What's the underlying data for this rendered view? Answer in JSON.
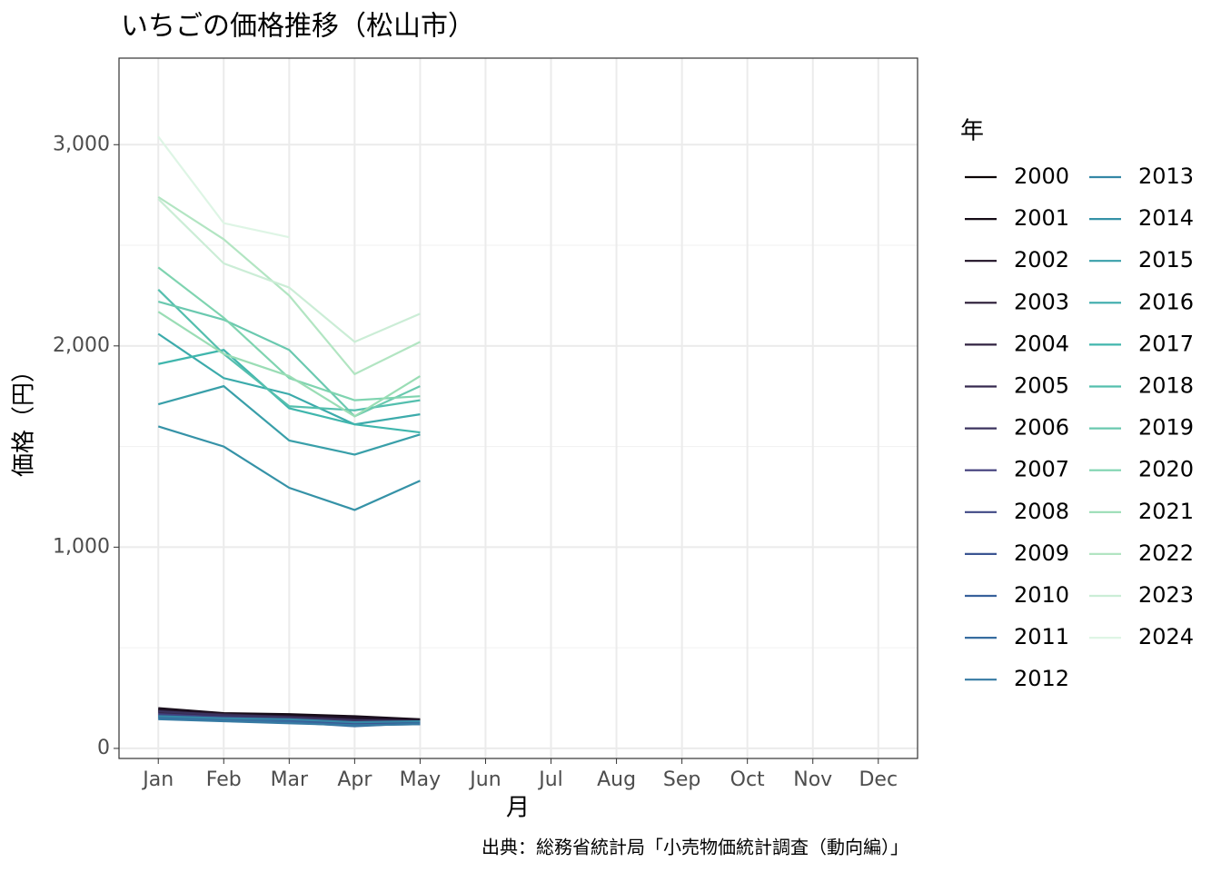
{
  "chart_data": {
    "type": "line",
    "title": "いちごの価格推移（松山市）",
    "x_label": "月",
    "y_label": "価格（円）",
    "caption": "出典：総務省統計局「小売物価統計調査（動向編）」",
    "legend_title": "年",
    "categories": [
      "Jan",
      "Feb",
      "Mar",
      "Apr",
      "May",
      "Jun",
      "Jul",
      "Aug",
      "Sep",
      "Oct",
      "Nov",
      "Dec"
    ],
    "ylim": [
      -50,
      3430
    ],
    "yticks": [
      0,
      {
        "value": 1000,
        "label": "1,000"
      },
      {
        "value": 2000,
        "label": "2,000"
      },
      {
        "value": 3000,
        "label": "3,000"
      }
    ],
    "grid": true,
    "legend": "right",
    "series": [
      {
        "name": "2000",
        "color": "#0B0405",
        "values": [
          190,
          170,
          165,
          150,
          140,
          null,
          null,
          null,
          null,
          null,
          null,
          null
        ]
      },
      {
        "name": "2001",
        "color": "#150B16",
        "values": [
          200,
          175,
          170,
          160,
          145,
          null,
          null,
          null,
          null,
          null,
          null,
          null
        ]
      },
      {
        "name": "2002",
        "color": "#1F1125",
        "values": [
          195,
          170,
          160,
          155,
          140,
          null,
          null,
          null,
          null,
          null,
          null,
          null
        ]
      },
      {
        "name": "2003",
        "color": "#291A35",
        "values": [
          185,
          165,
          160,
          145,
          135,
          null,
          null,
          null,
          null,
          null,
          null,
          null
        ]
      },
      {
        "name": "2004",
        "color": "#312240",
        "values": [
          180,
          170,
          155,
          140,
          130,
          null,
          null,
          null,
          null,
          null,
          null,
          null
        ]
      },
      {
        "name": "2005",
        "color": "#36294F",
        "values": [
          175,
          160,
          150,
          135,
          130,
          null,
          null,
          null,
          null,
          null,
          null,
          null
        ]
      },
      {
        "name": "2006",
        "color": "#3B335F",
        "values": [
          185,
          165,
          155,
          140,
          135,
          null,
          null,
          null,
          null,
          null,
          null,
          null
        ]
      },
      {
        "name": "2007",
        "color": "#413E7C",
        "values": [
          170,
          155,
          145,
          130,
          125,
          null,
          null,
          null,
          null,
          null,
          null,
          null
        ]
      },
      {
        "name": "2008",
        "color": "#3F4885",
        "values": [
          165,
          150,
          140,
          125,
          120,
          null,
          null,
          null,
          null,
          null,
          null,
          null
        ]
      },
      {
        "name": "2009",
        "color": "#3B5592",
        "values": [
          160,
          145,
          140,
          120,
          125,
          null,
          null,
          null,
          null,
          null,
          null,
          null
        ]
      },
      {
        "name": "2010",
        "color": "#38619B",
        "values": [
          155,
          140,
          135,
          115,
          120,
          null,
          null,
          null,
          null,
          null,
          null,
          null
        ]
      },
      {
        "name": "2011",
        "color": "#376DA0",
        "values": [
          150,
          145,
          130,
          110,
          125,
          null,
          null,
          null,
          null,
          null,
          null,
          null
        ]
      },
      {
        "name": "2012",
        "color": "#367AA3",
        "values": [
          145,
          135,
          125,
          115,
          120,
          null,
          null,
          null,
          null,
          null,
          null,
          null
        ]
      },
      {
        "name": "2013",
        "color": "#3587A6",
        "values": [
          160,
          150,
          145,
          130,
          135,
          null,
          null,
          null,
          null,
          null,
          null,
          null
        ]
      },
      {
        "name": "2014",
        "color": "#3592A7",
        "values": [
          1600,
          1500,
          1295,
          1185,
          1330,
          null,
          null,
          null,
          null,
          null,
          null,
          null
        ]
      },
      {
        "name": "2015",
        "color": "#399FA9",
        "values": [
          1710,
          1800,
          1530,
          1460,
          1560,
          null,
          null,
          null,
          null,
          null,
          null,
          null
        ]
      },
      {
        "name": "2016",
        "color": "#3CABAB",
        "values": [
          2060,
          1840,
          1760,
          1610,
          1660,
          null,
          null,
          null,
          null,
          null,
          null,
          null
        ]
      },
      {
        "name": "2017",
        "color": "#40B6AD",
        "values": [
          1910,
          1980,
          1690,
          1610,
          1570,
          null,
          null,
          null,
          null,
          null,
          null,
          null
        ]
      },
      {
        "name": "2018",
        "color": "#54BFAE",
        "values": [
          2280,
          1960,
          1700,
          1680,
          1730,
          null,
          null,
          null,
          null,
          null,
          null,
          null
        ]
      },
      {
        "name": "2019",
        "color": "#6AC9AF",
        "values": [
          2220,
          2130,
          1980,
          1650,
          1800,
          null,
          null,
          null,
          null,
          null,
          null,
          null
        ]
      },
      {
        "name": "2020",
        "color": "#7FD4B0",
        "values": [
          2390,
          2140,
          1840,
          1730,
          1750,
          null,
          null,
          null,
          null,
          null,
          null,
          null
        ]
      },
      {
        "name": "2021",
        "color": "#9ADDB5",
        "values": [
          2170,
          1960,
          1850,
          1650,
          1850,
          null,
          null,
          null,
          null,
          null,
          null,
          null
        ]
      },
      {
        "name": "2022",
        "color": "#B2E5C2",
        "values": [
          2740,
          2530,
          2250,
          1860,
          2020,
          null,
          null,
          null,
          null,
          null,
          null,
          null
        ]
      },
      {
        "name": "2023",
        "color": "#CBEDD6",
        "values": [
          2730,
          2410,
          2290,
          2020,
          2160,
          null,
          null,
          null,
          null,
          null,
          null,
          null
        ]
      },
      {
        "name": "2024",
        "color": "#DEF5E5",
        "values": [
          3040,
          2610,
          2540,
          null,
          null,
          null,
          null,
          null,
          null,
          null,
          null,
          null
        ]
      }
    ]
  }
}
